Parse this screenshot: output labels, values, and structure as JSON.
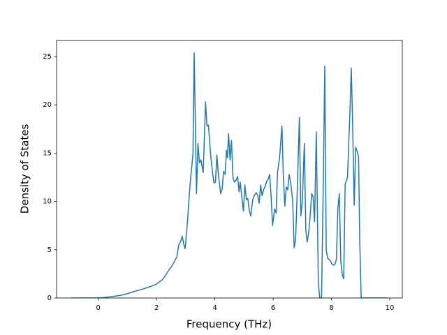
{
  "chart_data": {
    "type": "line",
    "xlabel": "Frequency (THz)",
    "ylabel": "Density of States",
    "x": [
      -0.93,
      -0.5,
      0,
      0.2,
      0.5,
      0.8,
      1.0,
      1.2,
      1.5,
      1.8,
      2.0,
      2.2,
      2.3,
      2.4,
      2.5,
      2.6,
      2.7,
      2.76,
      2.82,
      2.88,
      2.93,
      2.98,
      3.05,
      3.12,
      3.17,
      3.25,
      3.29,
      3.37,
      3.42,
      3.47,
      3.52,
      3.6,
      3.68,
      3.73,
      3.78,
      3.85,
      3.92,
      3.97,
      4.02,
      4.07,
      4.12,
      4.2,
      4.25,
      4.3,
      4.35,
      4.4,
      4.43,
      4.47,
      4.52,
      4.57,
      4.62,
      4.67,
      4.73,
      4.78,
      4.83,
      4.87,
      4.92,
      4.98,
      5.03,
      5.08,
      5.13,
      5.18,
      5.23,
      5.3,
      5.37,
      5.42,
      5.47,
      5.52,
      5.57,
      5.62,
      5.67,
      5.73,
      5.78,
      5.83,
      5.88,
      5.93,
      5.98,
      6.05,
      6.1,
      6.15,
      6.22,
      6.3,
      6.35,
      6.4,
      6.45,
      6.5,
      6.55,
      6.62,
      6.67,
      6.72,
      6.77,
      6.82,
      6.9,
      6.95,
      7.0,
      7.07,
      7.12,
      7.17,
      7.22,
      7.27,
      7.32,
      7.37,
      7.42,
      7.48,
      7.55,
      7.6,
      7.66,
      7.72,
      7.77,
      7.82,
      7.87,
      7.92,
      7.97,
      8.02,
      8.07,
      8.12,
      8.17,
      8.22,
      8.27,
      8.32,
      8.37,
      8.42,
      8.47,
      8.55,
      8.63,
      8.68,
      8.73,
      8.78,
      8.83,
      8.88,
      8.93,
      8.97,
      9.02,
      9.93
    ],
    "values": [
      0,
      0,
      0,
      0.05,
      0.15,
      0.3,
      0.45,
      0.65,
      0.9,
      1.2,
      1.45,
      1.9,
      2.3,
      2.8,
      3.2,
      3.7,
      4.3,
      5.5,
      5.8,
      6.4,
      5.6,
      5.1,
      7.5,
      10.5,
      12.5,
      14.9,
      25.4,
      10.8,
      16,
      14,
      14.3,
      13,
      20.3,
      17.8,
      17.9,
      15,
      13,
      11.9,
      12,
      14.8,
      12.8,
      10.8,
      11.3,
      13.1,
      12.8,
      15.3,
      14.5,
      17,
      14.3,
      16.3,
      12.5,
      12,
      12.2,
      12.6,
      11,
      12,
      10.6,
      9,
      11.7,
      10.2,
      10.3,
      9.1,
      8.5,
      10.2,
      10.7,
      10.9,
      10.6,
      9.8,
      11.7,
      10.6,
      11.2,
      11.6,
      12.1,
      12.3,
      12.8,
      10.5,
      7.5,
      9.2,
      8.8,
      13,
      14.5,
      17.8,
      12.5,
      9.5,
      11.5,
      11.2,
      12.8,
      11.5,
      10,
      5.2,
      6,
      10.5,
      18.7,
      8.5,
      10,
      16,
      7,
      5.8,
      6.8,
      8.5,
      10.8,
      10.5,
      7.9,
      17.2,
      1.5,
      0,
      0,
      12,
      24,
      5,
      4.1,
      4,
      3.8,
      3.5,
      3.4,
      3.5,
      4,
      9.3,
      10.8,
      3.8,
      2.4,
      2,
      11.8,
      12.5,
      19,
      23.8,
      17.5,
      9.6,
      15.6,
      15.2,
      14.6,
      6,
      0,
      0
    ],
    "color": "#1f77b4",
    "xlim": [
      -1.43,
      10.43
    ],
    "xticks": [
      0,
      2,
      4,
      6,
      8,
      10
    ],
    "ylim": [
      0,
      26.66
    ],
    "yticks": [
      0,
      5,
      10,
      15,
      20,
      25
    ],
    "grid": false
  }
}
